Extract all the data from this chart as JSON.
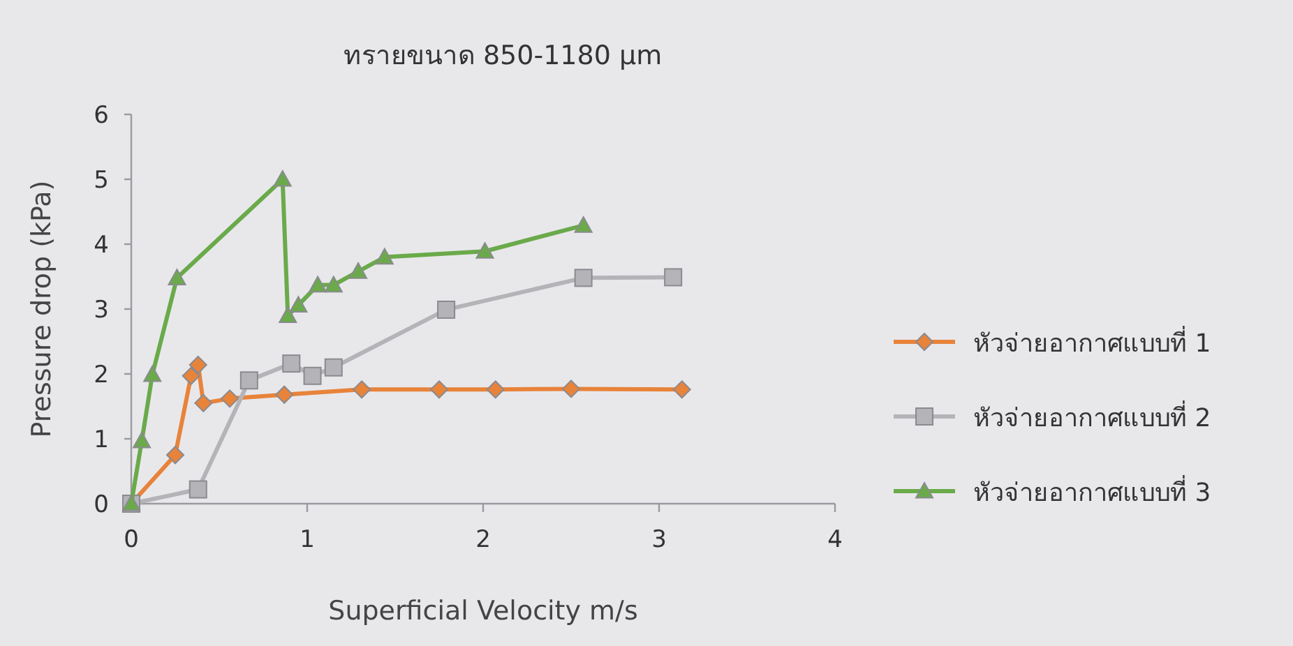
{
  "chart_data": {
    "type": "line",
    "title": "ทรายขนาด 850-1180 µm",
    "xlabel": "Superficial Velocity m/s",
    "ylabel": "Pressure drop (kPa)",
    "xlim": [
      0,
      4
    ],
    "xticks": [
      0,
      1,
      2,
      3,
      4
    ],
    "ylim": [
      0,
      6
    ],
    "yticks": [
      0,
      1,
      2,
      3,
      4,
      5,
      6
    ],
    "grid": false,
    "legend": "right",
    "line_style": "solid",
    "series": [
      {
        "name": "หัวจ่ายอากาศแบบที่ 1",
        "color": "#e8833a",
        "marker": "diamond",
        "x": [
          0,
          0.25,
          0.34,
          0.38,
          0.41,
          0.56,
          0.87,
          1.31,
          1.75,
          2.07,
          2.5,
          3.13
        ],
        "values": [
          0,
          0.75,
          1.97,
          2.14,
          1.55,
          1.62,
          1.68,
          1.76,
          1.76,
          1.76,
          1.77,
          1.76
        ]
      },
      {
        "name": "หัวจ่ายอากาศแบบที่ 2",
        "color": "#b4b4b8",
        "marker": "square",
        "x": [
          0,
          0.38,
          0.67,
          0.91,
          1.03,
          1.15,
          1.79,
          2.57,
          3.08
        ],
        "values": [
          0,
          0.22,
          1.9,
          2.16,
          1.97,
          2.1,
          2.99,
          3.48,
          3.49
        ]
      },
      {
        "name": "หัวจ่ายอากาศแบบที่ 3",
        "color": "#6aaa4a",
        "marker": "triangle",
        "x": [
          0,
          0.06,
          0.12,
          0.26,
          0.86,
          0.89,
          0.95,
          1.06,
          1.15,
          1.29,
          1.44,
          2.01,
          2.57
        ],
        "values": [
          0,
          0.97,
          1.99,
          3.48,
          5.0,
          2.9,
          3.06,
          3.37,
          3.37,
          3.58,
          3.8,
          3.89,
          4.29
        ]
      }
    ]
  }
}
